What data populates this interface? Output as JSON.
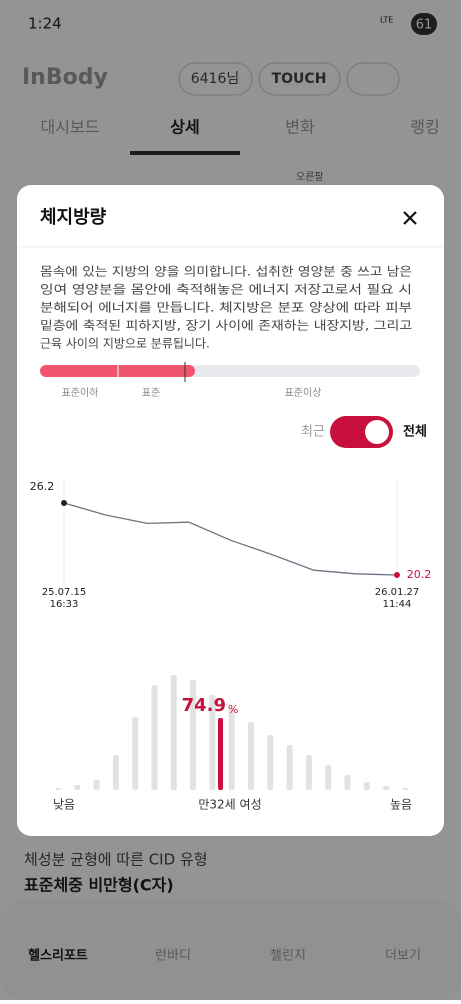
{
  "status_bar": {
    "time": "1:24",
    "network": "LTE",
    "battery": "61"
  },
  "header": {
    "logo": "InBody",
    "user": "6416님",
    "touch": "TOUCH"
  },
  "tabs": [
    "대시보드",
    "상세",
    "변화",
    "랭킹"
  ],
  "background_label": "오른팔",
  "modal": {
    "title": "체지방량",
    "description": [
      "몸속에 있는 지방의 양을 의미합니다. 섭취한 영양분 중 쓰고 남은",
      "잉여 영양분을 몸안에 축적해놓은 에너지 저장고로서 필요 시",
      "분해되어 에너지를 만듭니다. 체지방은 분포 양상에 따라 피부",
      "밑층에 축적된 피하지방, 장기 사이에 존재하는 내장지방, 그리고",
      "근육 사이의 지방으로 분류됩니다."
    ],
    "range_labels": [
      "표준이하",
      "표준",
      "표준이상"
    ],
    "toggle": {
      "left": "최근",
      "right": "전체"
    }
  },
  "chart_data": [
    {
      "type": "line",
      "color": "#6b7480",
      "dates": [
        "25.07.15",
        null,
        null,
        null,
        null,
        null,
        null,
        null,
        "26.01.27"
      ],
      "times": [
        "16:33",
        null,
        null,
        null,
        null,
        null,
        null,
        null,
        "11:44"
      ],
      "values": [
        26.2,
        25.2,
        24.5,
        24.6,
        23.1,
        21.9,
        20.6,
        20.3,
        20.2
      ]
    },
    {
      "type": "bar",
      "color": "#e2e2e2",
      "highlight_color": "#c8103e",
      "values": [
        2,
        5,
        10,
        35,
        73,
        105,
        115,
        110,
        95,
        82,
        68,
        55,
        45,
        35,
        25,
        15,
        8,
        4,
        2
      ],
      "highlight": {
        "value": 74.9,
        "unit": "%"
      },
      "labels": {
        "low": "낮음",
        "center": "만32세 여성",
        "high": "높음"
      }
    }
  ],
  "cid": {
    "title": "체성분 균형에 따른 CID 유형",
    "value": "표준체중 비만형(C자)"
  },
  "nav": [
    "헬스리포트",
    "런바디",
    "챌린지",
    "더보기"
  ]
}
